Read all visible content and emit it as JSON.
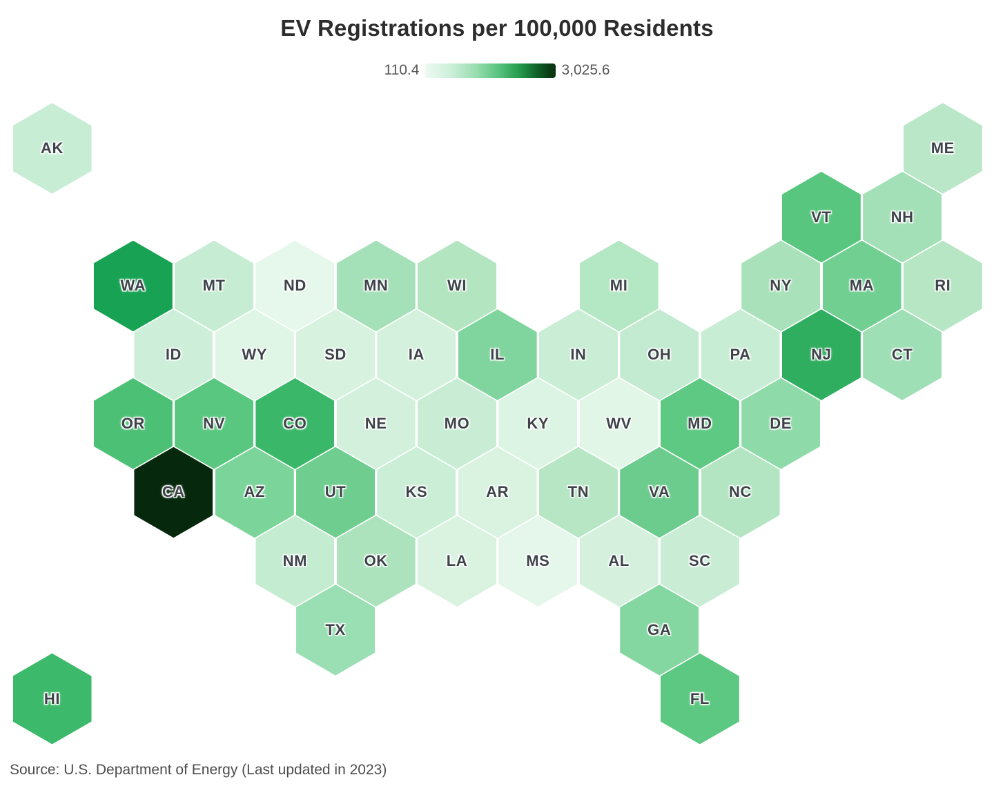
{
  "title": "EV Registrations per 100,000 Residents",
  "legend": {
    "min_label": "110.4",
    "max_label": "3,025.6",
    "gradient_stops": [
      "#eefaf2 0%",
      "#cdefda 20%",
      "#96dcad 40%",
      "#52c07a 58%",
      "#23984a 73%",
      "#0f6128 86%",
      "#0a3a14 96%",
      "#093310 100%"
    ]
  },
  "source": "Source: U.S. Department of Energy (Last updated in 2023)",
  "chart_data": {
    "type": "heatmap",
    "subtype": "hex-tile-choropleth-map",
    "title": "EV Registrations per 100,000 Residents",
    "value_range": [
      110.4,
      3025.6
    ],
    "legend_position": "top-center",
    "colormap": "light-green-to-dark-green",
    "states": [
      {
        "abbr": "AK",
        "row": 1,
        "col": 0,
        "color": "#c8edd5"
      },
      {
        "abbr": "ME",
        "row": 1,
        "col": 11,
        "color": "#bae7c7"
      },
      {
        "abbr": "VT",
        "row": 2,
        "col": 9,
        "color": "#58c67e"
      },
      {
        "abbr": "NH",
        "row": 2,
        "col": 10,
        "color": "#a3e0b7"
      },
      {
        "abbr": "WA",
        "row": 3,
        "col": 1,
        "color": "#17a353"
      },
      {
        "abbr": "MT",
        "row": 3,
        "col": 2,
        "color": "#c6ecd3"
      },
      {
        "abbr": "ND",
        "row": 3,
        "col": 3,
        "color": "#e6f8eb"
      },
      {
        "abbr": "MN",
        "row": 3,
        "col": 4,
        "color": "#a5e1b8"
      },
      {
        "abbr": "WI",
        "row": 3,
        "col": 5,
        "color": "#b3e5c1"
      },
      {
        "abbr": "MI",
        "row": 3,
        "col": 7,
        "color": "#b4e7c3"
      },
      {
        "abbr": "NY",
        "row": 3,
        "col": 9,
        "color": "#a9e2ba"
      },
      {
        "abbr": "MA",
        "row": 3,
        "col": 10,
        "color": "#70cf91"
      },
      {
        "abbr": "RI",
        "row": 3,
        "col": 11,
        "color": "#b7e6c4"
      },
      {
        "abbr": "ID",
        "row": 4,
        "col": 1,
        "color": "#cdeed9"
      },
      {
        "abbr": "WY",
        "row": 4,
        "col": 2,
        "color": "#dff5e5"
      },
      {
        "abbr": "SD",
        "row": 4,
        "col": 3,
        "color": "#d7f2df"
      },
      {
        "abbr": "IA",
        "row": 4,
        "col": 4,
        "color": "#d4f1dd"
      },
      {
        "abbr": "IL",
        "row": 4,
        "col": 5,
        "color": "#80d59e"
      },
      {
        "abbr": "IN",
        "row": 4,
        "col": 6,
        "color": "#c9edd5"
      },
      {
        "abbr": "OH",
        "row": 4,
        "col": 7,
        "color": "#c3ebd1"
      },
      {
        "abbr": "PA",
        "row": 4,
        "col": 8,
        "color": "#c7edd4"
      },
      {
        "abbr": "NJ",
        "row": 4,
        "col": 9,
        "color": "#2fae60"
      },
      {
        "abbr": "CT",
        "row": 4,
        "col": 10,
        "color": "#9fdfb5"
      },
      {
        "abbr": "OR",
        "row": 5,
        "col": 1,
        "color": "#4cc075"
      },
      {
        "abbr": "NV",
        "row": 5,
        "col": 2,
        "color": "#59c77f"
      },
      {
        "abbr": "CO",
        "row": 5,
        "col": 3,
        "color": "#3ab768"
      },
      {
        "abbr": "NE",
        "row": 5,
        "col": 4,
        "color": "#d2f0db"
      },
      {
        "abbr": "MO",
        "row": 5,
        "col": 5,
        "color": "#c8edd4"
      },
      {
        "abbr": "KY",
        "row": 5,
        "col": 6,
        "color": "#dcf4e3"
      },
      {
        "abbr": "WV",
        "row": 5,
        "col": 7,
        "color": "#e2f6e7"
      },
      {
        "abbr": "MD",
        "row": 5,
        "col": 8,
        "color": "#5ec983"
      },
      {
        "abbr": "DE",
        "row": 5,
        "col": 9,
        "color": "#8fdaa9"
      },
      {
        "abbr": "CA",
        "row": 6,
        "col": 1,
        "color": "#06290d"
      },
      {
        "abbr": "AZ",
        "row": 6,
        "col": 2,
        "color": "#7bd49a"
      },
      {
        "abbr": "UT",
        "row": 6,
        "col": 3,
        "color": "#6ecd8f"
      },
      {
        "abbr": "KS",
        "row": 6,
        "col": 4,
        "color": "#cbeed7"
      },
      {
        "abbr": "AR",
        "row": 6,
        "col": 5,
        "color": "#daf3e1"
      },
      {
        "abbr": "TN",
        "row": 6,
        "col": 6,
        "color": "#b6e6c4"
      },
      {
        "abbr": "VA",
        "row": 6,
        "col": 7,
        "color": "#6bcc8d"
      },
      {
        "abbr": "NC",
        "row": 6,
        "col": 8,
        "color": "#b3e5c2"
      },
      {
        "abbr": "NM",
        "row": 7,
        "col": 3,
        "color": "#c4ecd1"
      },
      {
        "abbr": "OK",
        "row": 7,
        "col": 4,
        "color": "#ace3bd"
      },
      {
        "abbr": "LA",
        "row": 7,
        "col": 5,
        "color": "#daf3e1"
      },
      {
        "abbr": "MS",
        "row": 7,
        "col": 6,
        "color": "#e5f7ea"
      },
      {
        "abbr": "AL",
        "row": 7,
        "col": 7,
        "color": "#d5f1de"
      },
      {
        "abbr": "SC",
        "row": 7,
        "col": 8,
        "color": "#c8edd4"
      },
      {
        "abbr": "TX",
        "row": 8,
        "col": 3,
        "color": "#9adfb3"
      },
      {
        "abbr": "GA",
        "row": 8,
        "col": 7,
        "color": "#84d7a1"
      },
      {
        "abbr": "HI",
        "row": 9,
        "col": 0,
        "color": "#3cb96a"
      },
      {
        "abbr": "FL",
        "row": 9,
        "col": 8,
        "color": "#5cc881"
      }
    ]
  }
}
